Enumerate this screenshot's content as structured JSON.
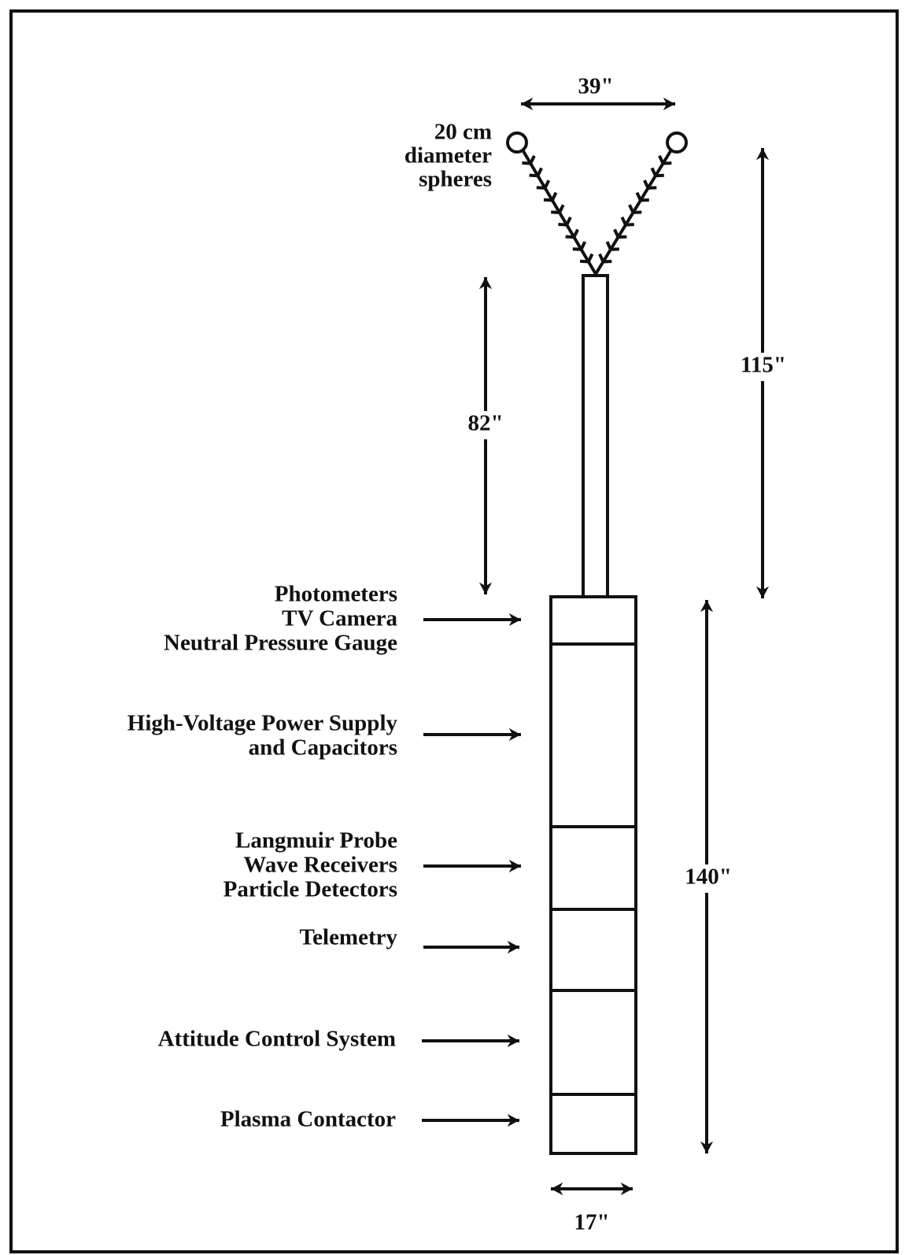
{
  "dimensions": {
    "sphere_spacing": "39\"",
    "total_boom_height": "115\"",
    "boom_length": "82\"",
    "body_length": "140\"",
    "body_width": "17\""
  },
  "spheres_label": [
    "20 cm",
    "diameter",
    "spheres"
  ],
  "components": [
    {
      "lines": [
        "Photometers",
        "TV Camera",
        "Neutral Pressure Gauge"
      ]
    },
    {
      "lines": [
        "High-Voltage Power Supply",
        "and Capacitors"
      ]
    },
    {
      "lines": [
        "Langmuir Probe",
        "Wave Receivers",
        "Particle Detectors"
      ]
    },
    {
      "lines": [
        "Telemetry"
      ]
    },
    {
      "lines": [
        "Attitude Control System"
      ]
    },
    {
      "lines": [
        "Plasma Contactor"
      ]
    }
  ]
}
